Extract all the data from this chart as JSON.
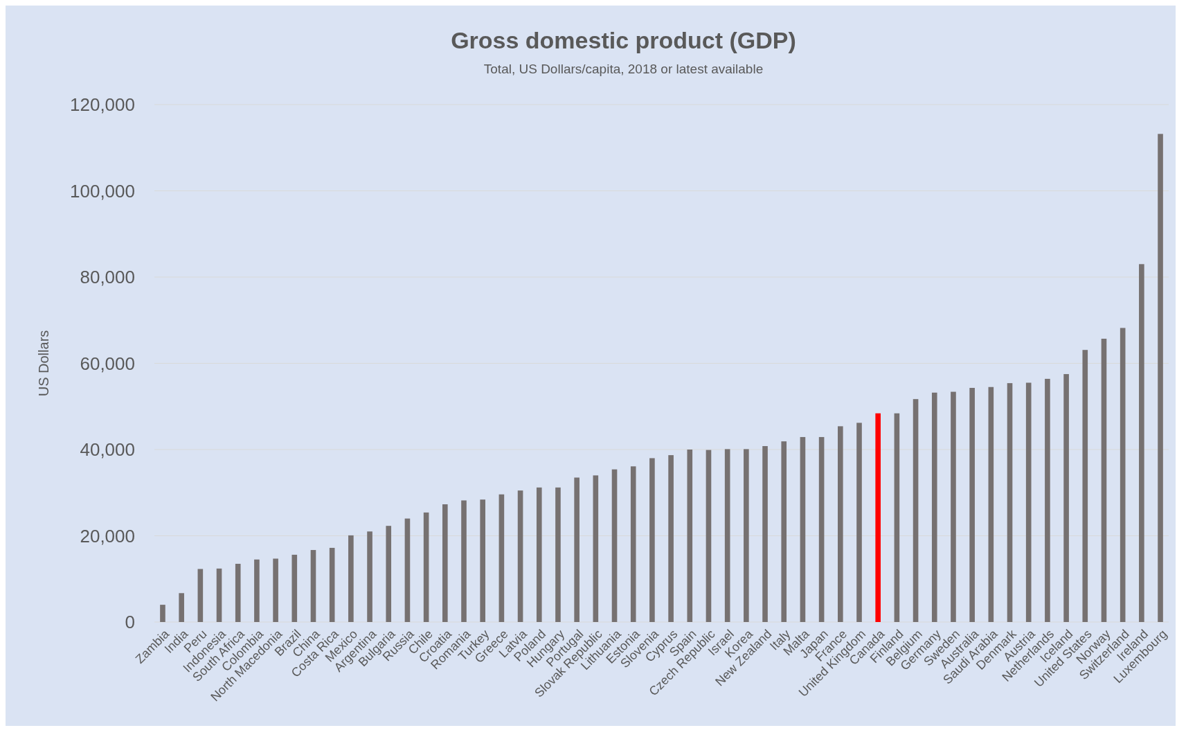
{
  "chart_data": {
    "type": "bar",
    "title": "Gross domestic product (GDP)",
    "subtitle": "Total, US Dollars/capita, 2018 or latest available",
    "ylabel": "US Dollars",
    "categories": [
      "Zambia",
      "India",
      "Peru",
      "Indonesia",
      "South Africa",
      "Colombia",
      "North Macedonia",
      "Brazil",
      "China",
      "Costa Rica",
      "Mexico",
      "Argentina",
      "Bulgaria",
      "Russia",
      "Chile",
      "Croatia",
      "Romania",
      "Turkey",
      "Greece",
      "Latvia",
      "Poland",
      "Hungary",
      "Portugal",
      "Slovak Republic",
      "Lithuania",
      "Estonia",
      "Slovenia",
      "Cyprus",
      "Spain",
      "Czech Republic",
      "Israel",
      "Korea",
      "New Zealand",
      "Italy",
      "Malta",
      "Japan",
      "France",
      "United Kingdom",
      "Canada",
      "Finland",
      "Belgium",
      "Germany",
      "Sweden",
      "Australia",
      "Saudi Arabia",
      "Denmark",
      "Austria",
      "Netherlands",
      "Iceland",
      "United States",
      "Norway",
      "Switzerland",
      "Ireland",
      "Luxembourg"
    ],
    "values": [
      4000,
      6700,
      12300,
      12400,
      13500,
      14500,
      14700,
      15600,
      16700,
      17200,
      20100,
      21000,
      22300,
      24000,
      25400,
      27300,
      28200,
      28400,
      29600,
      30500,
      31200,
      31200,
      33500,
      34000,
      35400,
      36100,
      38000,
      38700,
      40000,
      39900,
      40100,
      40100,
      40800,
      41900,
      42900,
      42900,
      45400,
      46200,
      48400,
      48400,
      51700,
      53200,
      53400,
      54300,
      54500,
      55400,
      55500,
      56400,
      57500,
      63100,
      65700,
      68200,
      83000,
      113200
    ],
    "colors": [
      "#767171",
      "#767171",
      "#767171",
      "#767171",
      "#767171",
      "#767171",
      "#767171",
      "#767171",
      "#767171",
      "#767171",
      "#767171",
      "#767171",
      "#767171",
      "#767171",
      "#767171",
      "#767171",
      "#767171",
      "#767171",
      "#767171",
      "#767171",
      "#767171",
      "#767171",
      "#767171",
      "#767171",
      "#767171",
      "#767171",
      "#767171",
      "#767171",
      "#767171",
      "#767171",
      "#767171",
      "#767171",
      "#767171",
      "#767171",
      "#767171",
      "#767171",
      "#767171",
      "#767171",
      "#ff0000",
      "#767171",
      "#767171",
      "#767171",
      "#767171",
      "#767171",
      "#767171",
      "#767171",
      "#767171",
      "#767171",
      "#767171",
      "#767171",
      "#767171",
      "#767171",
      "#767171",
      "#767171"
    ],
    "ylim": [
      0,
      120000
    ],
    "yticks": [
      {
        "value": 0,
        "label": "0"
      },
      {
        "value": 20000,
        "label": "20,000"
      },
      {
        "value": 40000,
        "label": "40,000"
      },
      {
        "value": 60000,
        "label": "60,000"
      },
      {
        "value": 80000,
        "label": "80,000"
      },
      {
        "value": 100000,
        "label": "100,000"
      },
      {
        "value": 120000,
        "label": "120,000"
      }
    ],
    "grid": "y"
  }
}
